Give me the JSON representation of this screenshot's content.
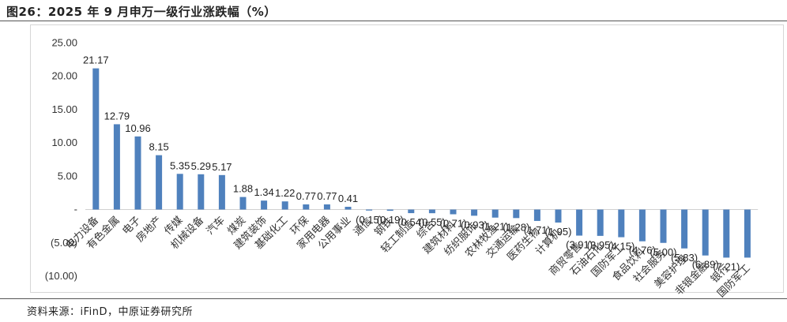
{
  "header": {
    "title": "图26：2025 年 9 月申万一级行业涨跌幅（%）"
  },
  "footer": {
    "source": "资料来源：iFinD，中原证券研究所"
  },
  "chart_data": {
    "type": "bar",
    "title": "",
    "xlabel": "",
    "ylabel": "",
    "ylim": [
      -10,
      25
    ],
    "yticks": [
      {
        "value": 25,
        "label": "25.00"
      },
      {
        "value": 20,
        "label": "20.00"
      },
      {
        "value": 15,
        "label": "15.00"
      },
      {
        "value": 10,
        "label": "10.00"
      },
      {
        "value": 5,
        "label": "5.00"
      },
      {
        "value": 0,
        "label": "-"
      },
      {
        "value": -5,
        "label": "(5.00)"
      },
      {
        "value": -10,
        "label": "(10.00)"
      }
    ],
    "grid": false,
    "legend": "none",
    "bar_color": "#4f81bd",
    "categories": [
      "电力设备",
      "有色金属",
      "电子",
      "房地产",
      "传媒",
      "机械设备",
      "汽车",
      "煤炭",
      "建筑装饰",
      "基础化工",
      "环保",
      "家用电器",
      "公用事业",
      "通信",
      "钢铁",
      "轻工制造",
      "综合",
      "建筑材料",
      "纺织服饰",
      "农林牧渔",
      "交通运输",
      "医药生物",
      "计算机",
      "商贸零售",
      "石油石化",
      "国防军工",
      "食品饮料",
      "社会服务",
      "美容护理",
      "非银金融",
      "银行",
      "国防军工"
    ],
    "values": [
      21.17,
      12.79,
      10.96,
      8.15,
      5.35,
      5.29,
      5.17,
      1.88,
      1.34,
      1.22,
      0.77,
      0.77,
      0.41,
      -0.15,
      -0.19,
      -0.54,
      -0.55,
      -0.71,
      -0.93,
      -1.21,
      -1.28,
      -1.71,
      -1.95,
      -3.91,
      -3.95,
      -4.15,
      -4.76,
      -5.0,
      -5.83,
      -6.89,
      -7.21,
      -7.21
    ],
    "labels": [
      "21.17",
      "12.79",
      "10.96",
      "8.15",
      "5.35",
      "5.29",
      "5.17",
      "1.88",
      "1.34",
      "1.22",
      "0.77",
      "0.77",
      "0.41",
      "(0.15)",
      "(0.19)",
      "(0.54)",
      "(0.55)",
      "(0.71)",
      "(0.93)",
      "(1.21)",
      "(1.28)",
      "(1.71)",
      "(1.95)",
      "(3.91)",
      "(3.95)",
      "(4.15)",
      "(4.76)",
      "(5.00)",
      "(5.83)",
      "(6.89)",
      "(7.21)",
      ""
    ]
  }
}
